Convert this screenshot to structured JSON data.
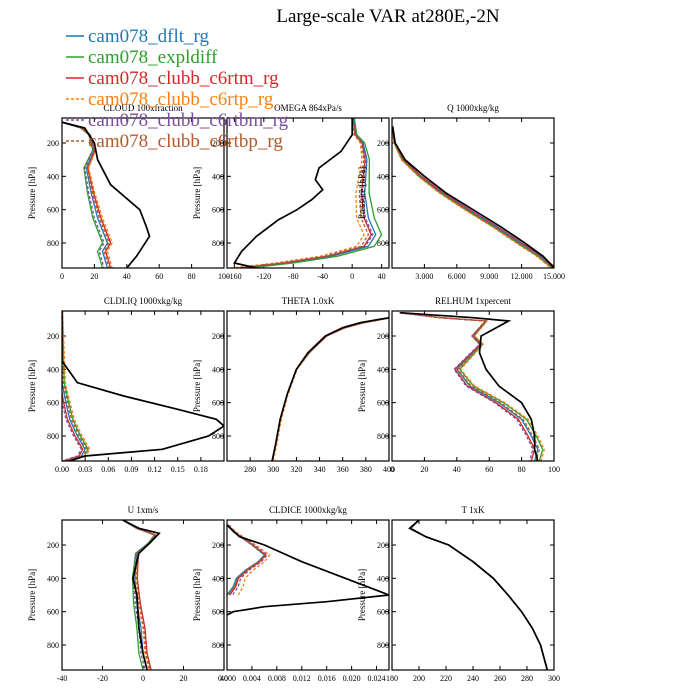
{
  "title": "Large-scale VAR at280E,-2N",
  "ylabel": "Pressure [hPa]",
  "series_colors": [
    "#1f77b4",
    "#2ca02c",
    "#d62728",
    "#ff7f0e",
    "#7b4f9e",
    "#b5582b"
  ],
  "legend": [
    {
      "name": "cam078_dflt_rg",
      "color": "#1f77b4"
    },
    {
      "name": "cam078_expldiff",
      "color": "#2ca02c"
    },
    {
      "name": "cam078_clubb_c6rtm_rg",
      "color": "#d62728"
    },
    {
      "name": "cam078_clubb_c6rtp_rg",
      "color": "#ff7f0e"
    },
    {
      "name": "cam078_clubb_c6rtbm_rg",
      "color": "#7b4f9e"
    },
    {
      "name": "cam078_clubb_c6rtbp_rg",
      "color": "#b5582b"
    }
  ],
  "chart_data": [
    {
      "type": "line",
      "title": "CLOUD 100xfraction",
      "xlim": [
        0,
        100
      ],
      "xticks": [
        0,
        20,
        40,
        60,
        80,
        100
      ],
      "xticklabels": [
        "0",
        "20",
        "40",
        "60",
        "80",
        "100"
      ],
      "ylim": [
        950,
        50
      ],
      "yticks": [
        200,
        400,
        600,
        800
      ],
      "ylabel": "Pressure [hPa]",
      "obs": [
        [
          0,
          75
        ],
        [
          14,
          110
        ],
        [
          20,
          200
        ],
        [
          22,
          300
        ],
        [
          30,
          450
        ],
        [
          48,
          600
        ],
        [
          52,
          700
        ],
        [
          54,
          760
        ],
        [
          50,
          820
        ],
        [
          46,
          880
        ],
        [
          40,
          950
        ]
      ],
      "model": [
        [
          0,
          75
        ],
        [
          12,
          110
        ],
        [
          17,
          150
        ],
        [
          20,
          240
        ],
        [
          15,
          350
        ],
        [
          18,
          500
        ],
        [
          22,
          650
        ],
        [
          28,
          800
        ],
        [
          25,
          850
        ],
        [
          28,
          950
        ]
      ],
      "offsets": [
        0,
        -3,
        2,
        3,
        -2,
        1
      ]
    },
    {
      "type": "line",
      "title": "OMEGA  864xPa/s",
      "xlim": [
        -170,
        50
      ],
      "xticks": [
        -160,
        -120,
        -80,
        -40,
        0,
        40
      ],
      "xticklabels": [
        "-160",
        "-120",
        "-80",
        "-40",
        "0",
        "40"
      ],
      "ylim": [
        950,
        50
      ],
      "yticks": [
        200,
        400,
        600,
        800
      ],
      "ylabel": "Pressure [hPa]",
      "obs": [
        [
          0,
          50
        ],
        [
          0,
          150
        ],
        [
          -15,
          250
        ],
        [
          -45,
          350
        ],
        [
          -50,
          420
        ],
        [
          -40,
          480
        ],
        [
          -55,
          540
        ],
        [
          -75,
          600
        ],
        [
          -100,
          660
        ],
        [
          -130,
          760
        ],
        [
          -150,
          850
        ],
        [
          -160,
          920
        ],
        [
          -130,
          950
        ]
      ],
      "model": [
        [
          0,
          50
        ],
        [
          3,
          150
        ],
        [
          12,
          200
        ],
        [
          15,
          300
        ],
        [
          8,
          500
        ],
        [
          10,
          650
        ],
        [
          20,
          750
        ],
        [
          10,
          820
        ],
        [
          -40,
          880
        ],
        [
          -100,
          920
        ],
        [
          -160,
          950
        ]
      ],
      "offsets": [
        12,
        20,
        6,
        -4,
        8,
        2
      ]
    },
    {
      "type": "line",
      "title": "Q  1000xkg/kg",
      "xlim": [
        0,
        15
      ],
      "xticks": [
        3,
        6,
        9,
        12,
        15
      ],
      "xticklabels": [
        "3.000",
        "6.000",
        "9.000",
        "12.000",
        "15.000"
      ],
      "ylim": [
        950,
        50
      ],
      "yticks": [
        200,
        400,
        600,
        800
      ],
      "ylabel": "Pressure [hPa]",
      "obs": [
        [
          0.05,
          100
        ],
        [
          0.3,
          200
        ],
        [
          1.2,
          300
        ],
        [
          3,
          400
        ],
        [
          5,
          500
        ],
        [
          7.5,
          600
        ],
        [
          10,
          700
        ],
        [
          12.3,
          800
        ],
        [
          14,
          880
        ],
        [
          15,
          950
        ]
      ],
      "model": [
        [
          0.05,
          100
        ],
        [
          0.25,
          200
        ],
        [
          1,
          300
        ],
        [
          2.6,
          400
        ],
        [
          4.6,
          500
        ],
        [
          7,
          600
        ],
        [
          9.5,
          700
        ],
        [
          11.8,
          800
        ],
        [
          13.7,
          880
        ],
        [
          15,
          950
        ]
      ],
      "offsets": [
        0,
        -0.2,
        0.2,
        -0.3,
        0.15,
        -0.1
      ]
    },
    {
      "type": "line",
      "title": "CLDLIQ  1000xkg/kg",
      "xlim": [
        0,
        0.21
      ],
      "xticks": [
        0,
        0.03,
        0.06,
        0.09,
        0.12,
        0.15,
        0.18
      ],
      "xticklabels": [
        "0.00",
        "0.03",
        "0.06",
        "0.09",
        "0.12",
        "0.15",
        "0.18"
      ],
      "ylim": [
        950,
        50
      ],
      "yticks": [
        200,
        400,
        600,
        800
      ],
      "ylabel": "Pressure [hPa]",
      "obs": [
        [
          0,
          50
        ],
        [
          0,
          350
        ],
        [
          0.02,
          480
        ],
        [
          0.08,
          560
        ],
        [
          0.15,
          640
        ],
        [
          0.2,
          700
        ],
        [
          0.21,
          740
        ],
        [
          0.19,
          800
        ],
        [
          0.13,
          880
        ],
        [
          0.03,
          920
        ],
        [
          0.01,
          950
        ]
      ],
      "model": [
        [
          0,
          50
        ],
        [
          0,
          480
        ],
        [
          0.005,
          600
        ],
        [
          0.01,
          700
        ],
        [
          0.02,
          800
        ],
        [
          0.03,
          880
        ],
        [
          0.025,
          920
        ],
        [
          0.005,
          950
        ]
      ],
      "offsets": [
        0,
        0.004,
        -0.003,
        0.006,
        -0.005,
        0.002
      ]
    },
    {
      "type": "line",
      "title": "THETA  1.0xK",
      "xlim": [
        260,
        400
      ],
      "xticks": [
        280,
        300,
        320,
        340,
        360,
        380,
        400
      ],
      "xticklabels": [
        "280",
        "300",
        "320",
        "340",
        "360",
        "380",
        "400"
      ],
      "ylim": [
        950,
        50
      ],
      "yticks": [
        200,
        400,
        600,
        800
      ],
      "ylabel": "Pressure [hPa]",
      "obs": [
        [
          299,
          950
        ],
        [
          302,
          850
        ],
        [
          306,
          700
        ],
        [
          312,
          550
        ],
        [
          320,
          400
        ],
        [
          330,
          300
        ],
        [
          345,
          200
        ],
        [
          360,
          150
        ],
        [
          375,
          120
        ],
        [
          400,
          90
        ]
      ],
      "model": [
        [
          299,
          950
        ],
        [
          302,
          850
        ],
        [
          306,
          700
        ],
        [
          312,
          550
        ],
        [
          320,
          400
        ],
        [
          331,
          300
        ],
        [
          346,
          200
        ],
        [
          362,
          150
        ],
        [
          378,
          120
        ],
        [
          400,
          92
        ]
      ],
      "offsets": [
        0,
        0,
        0,
        1,
        0,
        0
      ]
    },
    {
      "type": "line",
      "title": "RELHUM  1xpercent",
      "xlim": [
        0,
        100
      ],
      "xticks": [
        0,
        20,
        40,
        60,
        80,
        100
      ],
      "xticklabels": [
        "0",
        "20",
        "40",
        "60",
        "80",
        "100"
      ],
      "ylim": [
        950,
        50
      ],
      "yticks": [
        200,
        400,
        600,
        800
      ],
      "ylabel": "Pressure [hPa]",
      "obs": [
        [
          5,
          60
        ],
        [
          50,
          90
        ],
        [
          72,
          110
        ],
        [
          55,
          200
        ],
        [
          54,
          300
        ],
        [
          58,
          400
        ],
        [
          66,
          500
        ],
        [
          80,
          600
        ],
        [
          86,
          700
        ],
        [
          88,
          800
        ],
        [
          88,
          880
        ],
        [
          90,
          950
        ]
      ],
      "model": [
        [
          5,
          60
        ],
        [
          30,
          90
        ],
        [
          58,
          110
        ],
        [
          50,
          200
        ],
        [
          55,
          250
        ],
        [
          40,
          400
        ],
        [
          48,
          500
        ],
        [
          66,
          600
        ],
        [
          80,
          700
        ],
        [
          86,
          800
        ],
        [
          90,
          880
        ],
        [
          88,
          950
        ]
      ],
      "offsets": [
        0,
        3,
        -2,
        4,
        -3,
        1
      ]
    },
    {
      "type": "line",
      "title": "U  1xm/s",
      "xlim": [
        -40,
        40
      ],
      "xticks": [
        -40,
        -20,
        0,
        20,
        40
      ],
      "xticklabels": [
        "-40",
        "-20",
        "0",
        "20",
        "40"
      ],
      "ylim": [
        950,
        50
      ],
      "yticks": [
        200,
        400,
        600,
        800
      ],
      "ylabel": "Pressure [hPa]",
      "obs": [
        [
          -10,
          50
        ],
        [
          -2,
          100
        ],
        [
          8,
          130
        ],
        [
          4,
          180
        ],
        [
          -2,
          250
        ],
        [
          -5,
          400
        ],
        [
          -3,
          500
        ],
        [
          -2,
          700
        ],
        [
          0,
          850
        ],
        [
          2,
          950
        ]
      ],
      "model": [
        [
          -10,
          50
        ],
        [
          -3,
          100
        ],
        [
          6,
          140
        ],
        [
          3,
          190
        ],
        [
          -3,
          250
        ],
        [
          -4,
          400
        ],
        [
          -3,
          550
        ],
        [
          -1,
          700
        ],
        [
          0,
          850
        ],
        [
          2,
          950
        ]
      ],
      "offsets": [
        0,
        -2,
        2,
        1,
        -1,
        1.5
      ]
    },
    {
      "type": "line",
      "title": "CLDICE  1000xkg/kg",
      "xlim": [
        0,
        0.026
      ],
      "xticks": [
        0,
        0.004,
        0.008,
        0.012,
        0.016,
        0.02,
        0.024
      ],
      "xticklabels": [
        "0.000",
        "0.004",
        "0.008",
        "0.012",
        "0.016",
        "0.020",
        "0.024"
      ],
      "ylim": [
        950,
        50
      ],
      "yticks": [
        200,
        400,
        600,
        800
      ],
      "ylabel": "Pressure [hPa]",
      "obs": [
        [
          0,
          80
        ],
        [
          0.002,
          150
        ],
        [
          0.006,
          200
        ],
        [
          0.012,
          300
        ],
        [
          0.026,
          500
        ],
        [
          0.016,
          540
        ],
        [
          0.006,
          570
        ],
        [
          0.001,
          600
        ],
        [
          0,
          620
        ]
      ],
      "model": [
        [
          0,
          80
        ],
        [
          0.001,
          120
        ],
        [
          0.004,
          200
        ],
        [
          0.006,
          260
        ],
        [
          0.005,
          300
        ],
        [
          0.003,
          350
        ],
        [
          0.0015,
          400
        ],
        [
          0.001,
          450
        ],
        [
          0,
          500
        ]
      ],
      "offsets": [
        0,
        0.0004,
        0.0006,
        0.0024,
        0.0012,
        0.0003
      ]
    },
    {
      "type": "line",
      "title": "T  1xK",
      "xlim": [
        180,
        300
      ],
      "xticks": [
        180,
        200,
        220,
        240,
        260,
        280,
        300
      ],
      "xticklabels": [
        "180",
        "200",
        "220",
        "240",
        "260",
        "280",
        "300"
      ],
      "ylim": [
        950,
        50
      ],
      "yticks": [
        200,
        400,
        600,
        800
      ],
      "ylabel": "Pressure [hPa]",
      "obs": [
        [
          200,
          50
        ],
        [
          193,
          100
        ],
        [
          205,
          150
        ],
        [
          222,
          200
        ],
        [
          240,
          300
        ],
        [
          255,
          400
        ],
        [
          266,
          500
        ],
        [
          276,
          600
        ],
        [
          284,
          700
        ],
        [
          290,
          800
        ],
        [
          295,
          950
        ]
      ],
      "model": [
        [
          200,
          50
        ],
        [
          194,
          100
        ],
        [
          205,
          150
        ],
        [
          222,
          200
        ],
        [
          240,
          300
        ],
        [
          255,
          400
        ],
        [
          266,
          500
        ],
        [
          276,
          600
        ],
        [
          284,
          700
        ],
        [
          290,
          800
        ],
        [
          295,
          950
        ]
      ],
      "offsets": [
        0,
        0,
        0,
        0,
        0,
        0
      ]
    }
  ]
}
